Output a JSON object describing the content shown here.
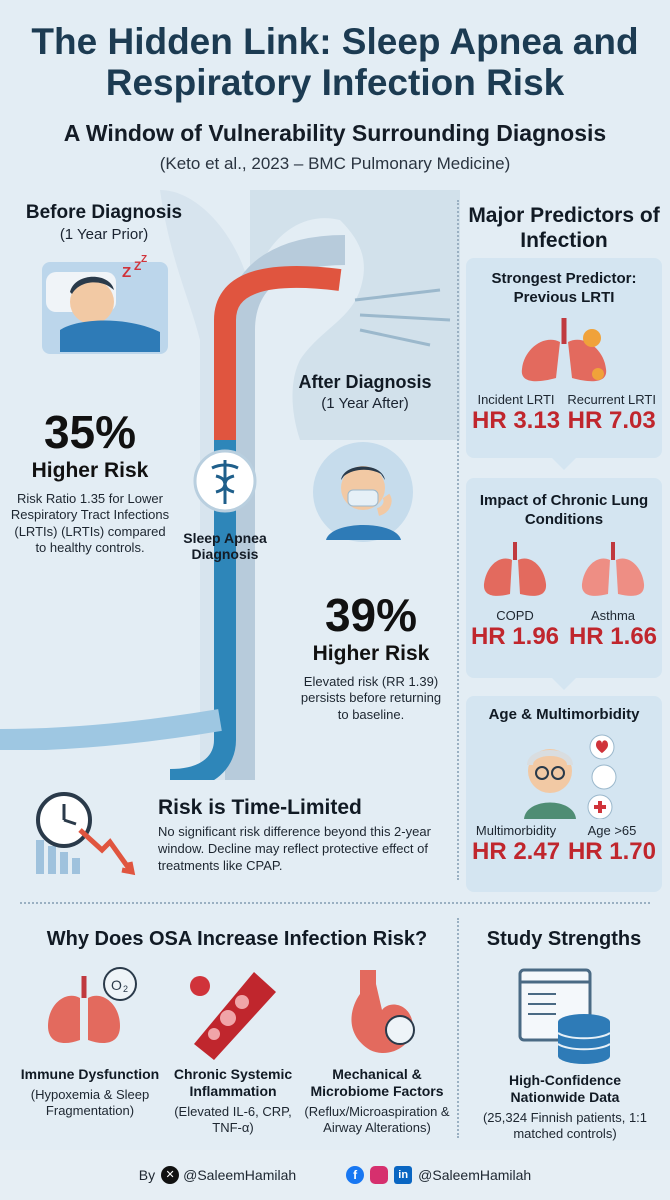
{
  "title": "The Hidden Link: Sleep Apnea and Respiratory Infection Risk",
  "subtitle": "A Window of Vulnerability Surrounding Diagnosis",
  "citation": "(Keto et al., 2023 – BMC Pulmonary Medicine)",
  "before": {
    "heading": "Before Diagnosis",
    "sub": "(1 Year Prior)",
    "percent": "35%",
    "risk": "Higher Risk",
    "note": "Risk Ratio 1.35 for Lower Respiratory Tract Infections (LRTIs) (LRTIs) compared to healthy controls."
  },
  "center_label": "Sleep Apnea Diagnosis",
  "after": {
    "heading": "After Diagnosis",
    "sub": "(1 Year After)",
    "percent": "39%",
    "risk": "Higher Risk",
    "note": "Elevated risk (RR 1.39) persists before returning to baseline."
  },
  "time_limited": {
    "heading": "Risk is Time-Limited",
    "text": "No significant risk difference beyond this 2-year window. Decline may reflect protective effect of treatments like CPAP."
  },
  "predictors": {
    "heading": "Major Predictors of Infection",
    "strongest": {
      "heading": "Strongest Predictor: Previous LRTI",
      "items": [
        {
          "label": "Incident LRTI",
          "hr": "HR 3.13"
        },
        {
          "label": "Recurrent LRTI",
          "hr": "HR 7.03"
        }
      ]
    },
    "chronic": {
      "heading": "Impact of Chronic Lung Conditions",
      "items": [
        {
          "label": "COPD",
          "hr": "HR 1.96"
        },
        {
          "label": "Asthma",
          "hr": "HR 1.66"
        }
      ]
    },
    "age": {
      "heading": "Age & Multimorbidity",
      "items": [
        {
          "label": "Multimorbidity",
          "hr": "HR 2.47"
        },
        {
          "label": "Age >65",
          "hr": "HR 1.70"
        }
      ]
    }
  },
  "why": {
    "heading": "Why Does OSA Increase Infection Risk?",
    "items": [
      {
        "title": "Immune Dysfunction",
        "sub": "(Hypoxemia & Sleep Fragmentation)"
      },
      {
        "title": "Chronic Systemic Inflammation",
        "sub": "(Elevated IL-6, CRP, TNF-α)"
      },
      {
        "title": "Mechanical & Microbiome Factors",
        "sub": "(Reflux/Microaspiration & Airway Alterations)"
      }
    ]
  },
  "strengths": {
    "heading": "Study Strengths",
    "title": "High-Confidence Nationwide Data",
    "sub": "(25,324 Finnish patients, 1:1 matched controls)"
  },
  "footer": {
    "by": "By",
    "handle1": "@SaleemHamilah",
    "handle2": "@SaleemHamilah"
  },
  "colors": {
    "accent_red": "#c0262d",
    "title_blue": "#1c3b52",
    "background": "#e3edf4"
  }
}
